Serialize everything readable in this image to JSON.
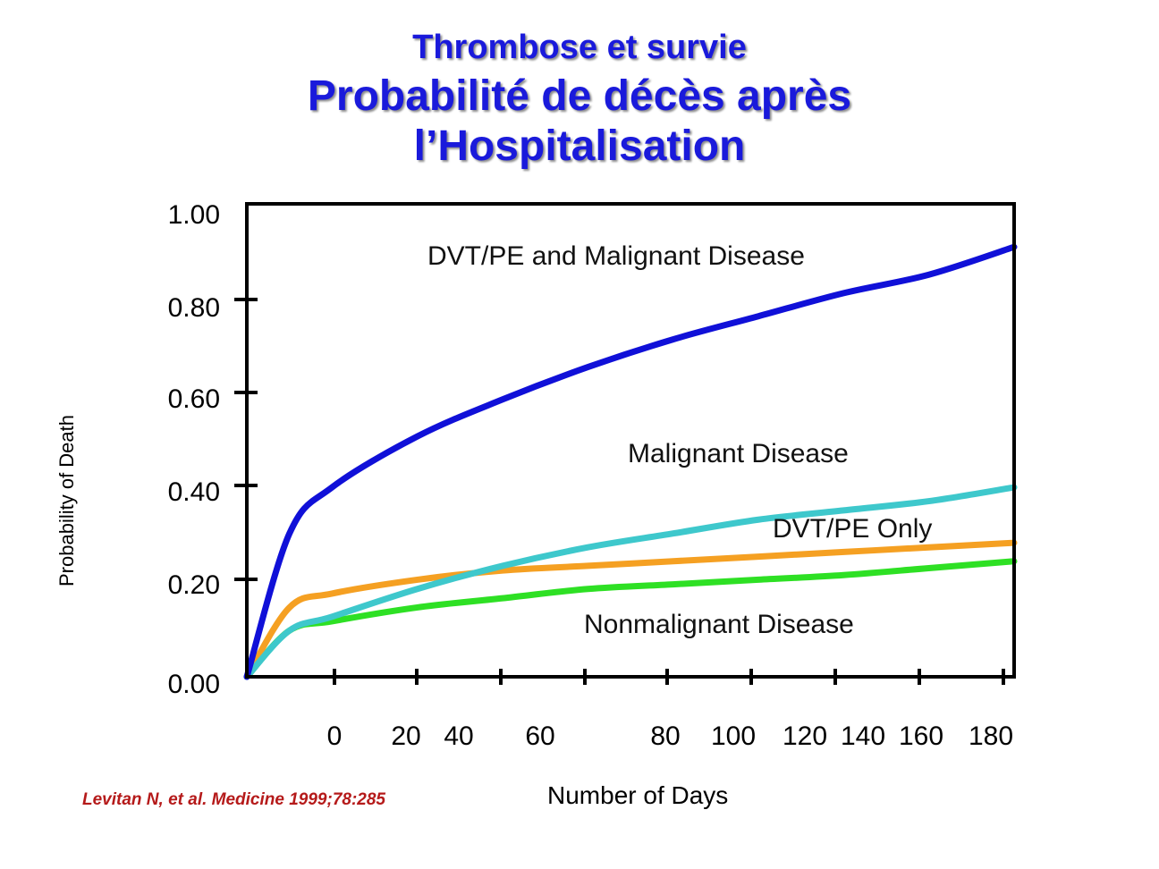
{
  "title": {
    "line1": "Thrombose et survie",
    "line2": "Probabilité de décès après",
    "line3": "l’Hospitalisation"
  },
  "citation": "Levitan N, et al. Medicine 1999;78:285",
  "chart_data": {
    "type": "line",
    "xlabel": "Number of Days",
    "ylabel": "Probability of Death",
    "ylim": [
      0,
      1.0
    ],
    "y_ticks": [
      "0.00",
      "0.20",
      "0.40",
      "0.60",
      "0.80",
      "1.00"
    ],
    "x_tick_labels": [
      "0",
      "20",
      "40",
      "60",
      "80",
      "100",
      "120",
      "140",
      "160",
      "180"
    ],
    "grid": false,
    "series": [
      {
        "name": "DVT/PE and Malignant Disease",
        "color": "#1010d8",
        "label_color": "#b51a1a",
        "x": [
          0,
          10,
          20,
          40,
          60,
          80,
          100,
          120,
          140,
          160,
          180
        ],
        "y": [
          0.0,
          0.31,
          0.41,
          0.52,
          0.6,
          0.67,
          0.73,
          0.78,
          0.83,
          0.87,
          0.93
        ]
      },
      {
        "name": "Malignant Disease",
        "color": "#3ec8cc",
        "label_color": "#111111",
        "x": [
          0,
          10,
          20,
          40,
          60,
          80,
          100,
          120,
          140,
          160,
          180
        ],
        "y": [
          0.0,
          0.1,
          0.13,
          0.19,
          0.24,
          0.28,
          0.31,
          0.34,
          0.36,
          0.38,
          0.41
        ]
      },
      {
        "name": "DVT/PE Only",
        "color": "#f5a022",
        "label_color": "#111111",
        "x": [
          0,
          10,
          20,
          40,
          60,
          80,
          100,
          120,
          140,
          160,
          180
        ],
        "y": [
          0.0,
          0.15,
          0.18,
          0.21,
          0.23,
          0.24,
          0.25,
          0.26,
          0.27,
          0.28,
          0.29
        ]
      },
      {
        "name": "Nonmalignant Disease",
        "color": "#2ee024",
        "label_color": "#111111",
        "x": [
          0,
          10,
          20,
          40,
          60,
          80,
          100,
          120,
          140,
          160,
          180
        ],
        "y": [
          0.0,
          0.1,
          0.12,
          0.15,
          0.17,
          0.19,
          0.2,
          0.21,
          0.22,
          0.235,
          0.25
        ]
      }
    ]
  }
}
